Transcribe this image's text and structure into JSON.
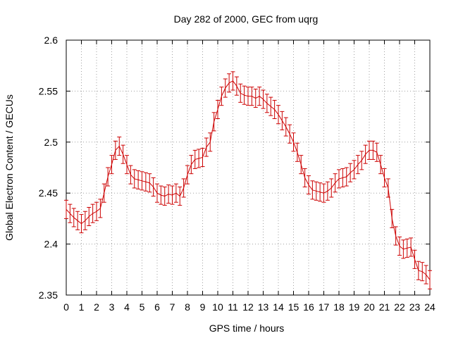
{
  "chart_data": {
    "type": "line",
    "title": "Day 282 of 2000, GEC from uqrg",
    "xlabel": "GPS time / hours",
    "ylabel": "Global Electron Content / GECUs",
    "xlim": [
      0,
      24
    ],
    "ylim": [
      2.35,
      2.6
    ],
    "xticks": [
      "0",
      "1",
      "2",
      "3",
      "4",
      "5",
      "6",
      "7",
      "8",
      "9",
      "10",
      "11",
      "12",
      "13",
      "14",
      "15",
      "16",
      "17",
      "18",
      "19",
      "20",
      "21",
      "22",
      "23",
      "24"
    ],
    "yticks": [
      "2.35",
      "2.4",
      "2.45",
      "2.5",
      "2.55",
      "2.6"
    ],
    "grid": true,
    "error_bar": 0.009,
    "color": "#cc0000",
    "series": [
      {
        "x": [
          0,
          0.25,
          0.5,
          0.75,
          1,
          1.25,
          1.5,
          1.75,
          2,
          2.25,
          2.5,
          2.75,
          3,
          3.25,
          3.5,
          3.75,
          4,
          4.25,
          4.5,
          4.75,
          5,
          5.25,
          5.5,
          5.75,
          6,
          6.25,
          6.5,
          6.75,
          7,
          7.25,
          7.5,
          7.75,
          8,
          8.25,
          8.5,
          8.75,
          9,
          9.25,
          9.5,
          9.75,
          10,
          10.25,
          10.5,
          10.75,
          11,
          11.25,
          11.5,
          11.75,
          12,
          12.25,
          12.5,
          12.75,
          13,
          13.25,
          13.5,
          13.75,
          14,
          14.25,
          14.5,
          14.75,
          15,
          15.25,
          15.5,
          15.75,
          16,
          16.25,
          16.5,
          16.75,
          17,
          17.25,
          17.5,
          17.75,
          18,
          18.25,
          18.5,
          18.75,
          19,
          19.25,
          19.5,
          19.75,
          20,
          20.25,
          20.5,
          20.75,
          21,
          21.25,
          21.5,
          21.75,
          22,
          22.25,
          22.5,
          22.75,
          23,
          23.25,
          23.5,
          23.75,
          24
        ],
        "y": [
          2.434,
          2.43,
          2.426,
          2.423,
          2.42,
          2.423,
          2.427,
          2.43,
          2.432,
          2.435,
          2.45,
          2.466,
          2.478,
          2.492,
          2.496,
          2.488,
          2.478,
          2.468,
          2.464,
          2.463,
          2.462,
          2.461,
          2.46,
          2.456,
          2.45,
          2.448,
          2.447,
          2.449,
          2.448,
          2.45,
          2.447,
          2.455,
          2.468,
          2.478,
          2.483,
          2.484,
          2.485,
          2.495,
          2.5,
          2.52,
          2.532,
          2.545,
          2.553,
          2.558,
          2.56,
          2.555,
          2.548,
          2.546,
          2.545,
          2.545,
          2.543,
          2.545,
          2.542,
          2.538,
          2.535,
          2.532,
          2.527,
          2.521,
          2.515,
          2.508,
          2.5,
          2.49,
          2.478,
          2.465,
          2.458,
          2.453,
          2.452,
          2.451,
          2.45,
          2.452,
          2.455,
          2.46,
          2.464,
          2.465,
          2.466,
          2.47,
          2.473,
          2.478,
          2.482,
          2.488,
          2.492,
          2.492,
          2.49,
          2.478,
          2.465,
          2.455,
          2.425,
          2.408,
          2.398,
          2.395,
          2.396,
          2.397,
          2.385,
          2.374,
          2.373,
          2.37,
          2.365
        ]
      }
    ]
  }
}
